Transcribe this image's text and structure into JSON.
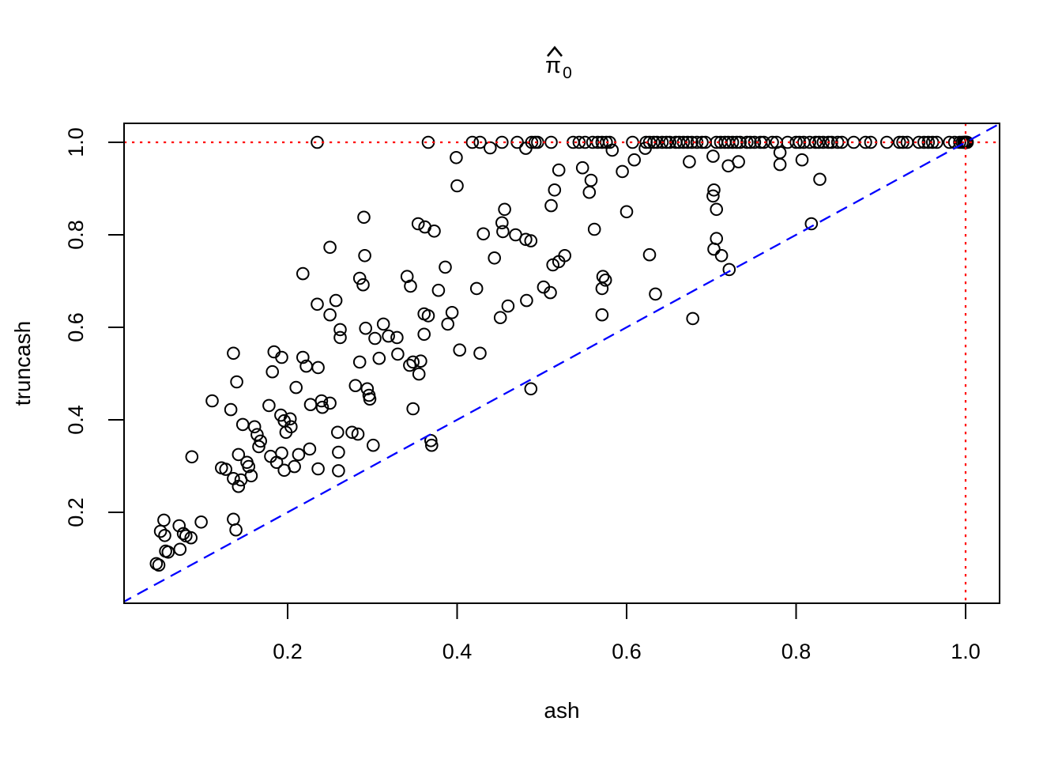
{
  "figure": {
    "background": "#ffffff",
    "title_parts": {
      "hat": "^",
      "base": "π",
      "subscript": "0"
    }
  },
  "chart_data": {
    "type": "scatter",
    "title": "π̂0 (pi-hat zero)",
    "xlabel": "ash",
    "ylabel": "truncash",
    "xlim": [
      0.0,
      1.04
    ],
    "ylim": [
      0.0,
      1.04
    ],
    "grid": false,
    "legend": null,
    "marker": "open-circle",
    "marker_color": "#000000",
    "x_ticks": [
      0.2,
      0.4,
      0.6,
      0.8,
      1.0
    ],
    "x_tick_labels": [
      "0.2",
      "0.4",
      "0.6",
      "0.8",
      "1.0"
    ],
    "y_ticks": [
      0.2,
      0.4,
      0.6,
      0.8,
      1.0
    ],
    "y_tick_labels": [
      "0.2",
      "0.4",
      "0.6",
      "0.8",
      "1.0"
    ],
    "reference_lines": [
      {
        "name": "identity",
        "kind": "diagonal",
        "from": [
          0.003,
          0.003
        ],
        "to": [
          1.041,
          1.041
        ],
        "color": "#0000ff",
        "dash": "15 9",
        "width": 2.3
      },
      {
        "name": "pi0-one-horizontal",
        "kind": "horizontal",
        "y": 1.0,
        "color": "#ff0000",
        "dash": "3.2 6.8",
        "width": 2.2
      },
      {
        "name": "pi0-one-vertical",
        "kind": "vertical",
        "x": 1.0,
        "color": "#ff0000",
        "dash": "3.2 6.8",
        "width": 2.2
      }
    ],
    "points_at_y_equals_1_x": [
      0.235,
      0.366,
      0.418,
      0.427,
      0.453,
      0.471,
      0.488,
      0.492,
      0.495,
      0.511,
      0.537,
      0.544,
      0.551,
      0.56,
      0.566,
      0.571,
      0.576,
      0.58,
      0.607,
      0.623,
      0.627,
      0.632,
      0.636,
      0.642,
      0.647,
      0.651,
      0.658,
      0.662,
      0.667,
      0.672,
      0.677,
      0.683,
      0.689,
      0.693,
      0.706,
      0.711,
      0.716,
      0.72,
      0.725,
      0.73,
      0.734,
      0.742,
      0.746,
      0.751,
      0.758,
      0.762,
      0.772,
      0.777,
      0.79,
      0.8,
      0.804,
      0.809,
      0.816,
      0.823,
      0.827,
      0.832,
      0.838,
      0.842,
      0.849,
      0.854,
      0.868,
      0.882,
      0.888,
      0.907,
      0.922,
      0.926,
      0.931,
      0.945,
      0.951,
      0.956,
      0.961,
      0.966,
      0.981,
      0.987,
      0.993,
      0.996,
      0.998,
      0.999,
      1.0,
      1.0,
      1.001,
      1.002
    ],
    "points": [
      [
        0.399,
        0.967
      ],
      [
        0.439,
        0.988
      ],
      [
        0.481,
        0.987
      ],
      [
        0.52,
        0.94
      ],
      [
        0.548,
        0.945
      ],
      [
        0.556,
        0.892
      ],
      [
        0.558,
        0.918
      ],
      [
        0.562,
        0.812
      ],
      [
        0.583,
        0.983
      ],
      [
        0.595,
        0.937
      ],
      [
        0.6,
        0.85
      ],
      [
        0.609,
        0.962
      ],
      [
        0.622,
        0.987
      ],
      [
        0.674,
        0.958
      ],
      [
        0.702,
        0.97
      ],
      [
        0.702,
        0.884
      ],
      [
        0.703,
        0.897
      ],
      [
        0.703,
        0.769
      ],
      [
        0.706,
        0.855
      ],
      [
        0.706,
        0.792
      ],
      [
        0.712,
        0.755
      ],
      [
        0.72,
        0.949
      ],
      [
        0.721,
        0.725
      ],
      [
        0.732,
        0.958
      ],
      [
        0.781,
        0.978
      ],
      [
        0.781,
        0.952
      ],
      [
        0.807,
        0.962
      ],
      [
        0.818,
        0.824
      ],
      [
        0.828,
        0.92
      ],
      [
        0.4,
        0.906
      ],
      [
        0.456,
        0.855
      ],
      [
        0.453,
        0.826
      ],
      [
        0.454,
        0.807
      ],
      [
        0.431,
        0.802
      ],
      [
        0.444,
        0.75
      ],
      [
        0.469,
        0.8
      ],
      [
        0.481,
        0.79
      ],
      [
        0.487,
        0.787
      ],
      [
        0.511,
        0.863
      ],
      [
        0.515,
        0.897
      ],
      [
        0.513,
        0.735
      ],
      [
        0.52,
        0.742
      ],
      [
        0.527,
        0.755
      ],
      [
        0.627,
        0.757
      ],
      [
        0.29,
        0.838
      ],
      [
        0.354,
        0.824
      ],
      [
        0.362,
        0.817
      ],
      [
        0.373,
        0.808
      ],
      [
        0.291,
        0.755
      ],
      [
        0.25,
        0.773
      ],
      [
        0.218,
        0.716
      ],
      [
        0.285,
        0.706
      ],
      [
        0.341,
        0.71
      ],
      [
        0.386,
        0.73
      ],
      [
        0.572,
        0.71
      ],
      [
        0.575,
        0.702
      ],
      [
        0.289,
        0.692
      ],
      [
        0.345,
        0.689
      ],
      [
        0.378,
        0.68
      ],
      [
        0.423,
        0.684
      ],
      [
        0.502,
        0.687
      ],
      [
        0.51,
        0.675
      ],
      [
        0.571,
        0.684
      ],
      [
        0.634,
        0.672
      ],
      [
        0.235,
        0.65
      ],
      [
        0.257,
        0.658
      ],
      [
        0.46,
        0.646
      ],
      [
        0.482,
        0.658
      ],
      [
        0.451,
        0.621
      ],
      [
        0.571,
        0.627
      ],
      [
        0.678,
        0.619
      ],
      [
        0.25,
        0.627
      ],
      [
        0.361,
        0.629
      ],
      [
        0.366,
        0.625
      ],
      [
        0.394,
        0.632
      ],
      [
        0.389,
        0.607
      ],
      [
        0.262,
        0.595
      ],
      [
        0.262,
        0.578
      ],
      [
        0.292,
        0.598
      ],
      [
        0.313,
        0.607
      ],
      [
        0.303,
        0.576
      ],
      [
        0.319,
        0.581
      ],
      [
        0.329,
        0.578
      ],
      [
        0.361,
        0.585
      ],
      [
        0.136,
        0.544
      ],
      [
        0.184,
        0.547
      ],
      [
        0.193,
        0.535
      ],
      [
        0.182,
        0.504
      ],
      [
        0.218,
        0.535
      ],
      [
        0.222,
        0.516
      ],
      [
        0.236,
        0.513
      ],
      [
        0.285,
        0.525
      ],
      [
        0.308,
        0.533
      ],
      [
        0.33,
        0.542
      ],
      [
        0.344,
        0.518
      ],
      [
        0.348,
        0.525
      ],
      [
        0.357,
        0.527
      ],
      [
        0.355,
        0.499
      ],
      [
        0.403,
        0.551
      ],
      [
        0.427,
        0.544
      ],
      [
        0.111,
        0.441
      ],
      [
        0.133,
        0.422
      ],
      [
        0.14,
        0.482
      ],
      [
        0.147,
        0.39
      ],
      [
        0.161,
        0.385
      ],
      [
        0.164,
        0.368
      ],
      [
        0.168,
        0.354
      ],
      [
        0.178,
        0.431
      ],
      [
        0.192,
        0.41
      ],
      [
        0.196,
        0.398
      ],
      [
        0.198,
        0.373
      ],
      [
        0.203,
        0.402
      ],
      [
        0.204,
        0.385
      ],
      [
        0.21,
        0.47
      ],
      [
        0.227,
        0.433
      ],
      [
        0.24,
        0.441
      ],
      [
        0.241,
        0.427
      ],
      [
        0.25,
        0.436
      ],
      [
        0.259,
        0.373
      ],
      [
        0.276,
        0.373
      ],
      [
        0.28,
        0.474
      ],
      [
        0.283,
        0.369
      ],
      [
        0.294,
        0.467
      ],
      [
        0.296,
        0.453
      ],
      [
        0.297,
        0.445
      ],
      [
        0.348,
        0.424
      ],
      [
        0.487,
        0.467
      ],
      [
        0.301,
        0.345
      ],
      [
        0.369,
        0.355
      ],
      [
        0.37,
        0.345
      ],
      [
        0.226,
        0.337
      ],
      [
        0.26,
        0.33
      ],
      [
        0.236,
        0.294
      ],
      [
        0.26,
        0.29
      ],
      [
        0.142,
        0.256
      ],
      [
        0.087,
        0.32
      ],
      [
        0.166,
        0.342
      ],
      [
        0.122,
        0.296
      ],
      [
        0.127,
        0.293
      ],
      [
        0.142,
        0.325
      ],
      [
        0.152,
        0.308
      ],
      [
        0.157,
        0.279
      ],
      [
        0.145,
        0.27
      ],
      [
        0.136,
        0.273
      ],
      [
        0.154,
        0.299
      ],
      [
        0.18,
        0.321
      ],
      [
        0.193,
        0.328
      ],
      [
        0.187,
        0.308
      ],
      [
        0.196,
        0.291
      ],
      [
        0.208,
        0.299
      ],
      [
        0.213,
        0.325
      ],
      [
        0.054,
        0.183
      ],
      [
        0.05,
        0.159
      ],
      [
        0.055,
        0.15
      ],
      [
        0.056,
        0.116
      ],
      [
        0.045,
        0.089
      ],
      [
        0.048,
        0.086
      ],
      [
        0.072,
        0.171
      ],
      [
        0.077,
        0.154
      ],
      [
        0.08,
        0.149
      ],
      [
        0.086,
        0.145
      ],
      [
        0.073,
        0.12
      ],
      [
        0.059,
        0.114
      ],
      [
        0.098,
        0.179
      ],
      [
        0.136,
        0.185
      ],
      [
        0.139,
        0.162
      ]
    ]
  }
}
